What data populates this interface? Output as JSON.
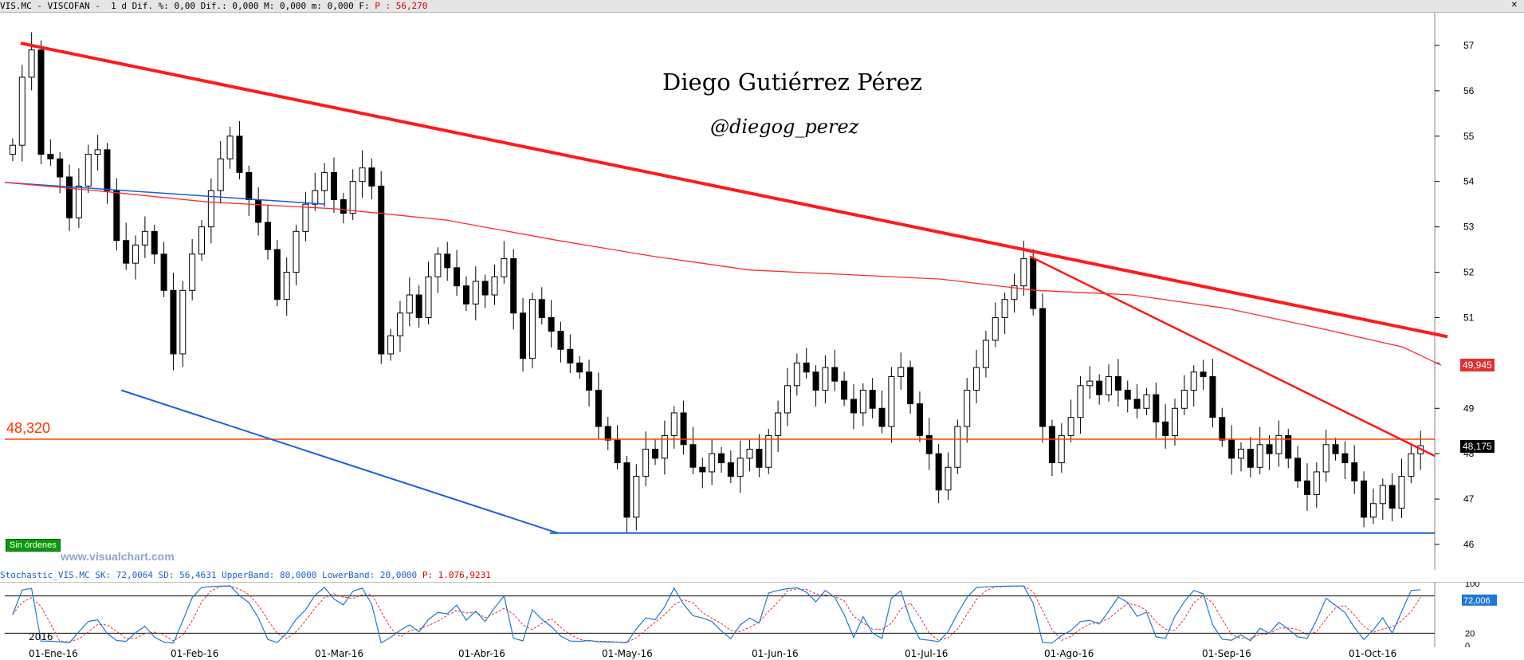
{
  "header": {
    "symbol_line": "VIS.MC - VISCOFAN -  1 d Dif. %: 0,00 Dif.: 0,000 M: 0,000 m: 0,000 F: ",
    "last_price": "P : 56,270",
    "close_icon": "close-icon"
  },
  "annotations": {
    "author": "Diego Gutiérrez Pérez",
    "handle": "@diegog_perez",
    "watermark": "www.visualchart.com",
    "orders_button": "Sin órdenes",
    "support_label": "48,320",
    "ma_tag": "49,945",
    "last_tag": "48,175",
    "year": "2016"
  },
  "colors": {
    "up_candle": "#ffffff",
    "down_candle": "#000000",
    "trend_red": "#ff1a1a",
    "ma_red": "#ff2a2a",
    "support_orange": "#ff4400",
    "channel_blue": "#1a5fd6",
    "stoch_k": "#1e78d8",
    "stoch_d": "#e03030"
  },
  "indicator": {
    "label": "Stochastic_VIS.MC SK: 72,0064 SD: 56,4631 UpperBand: 80,0000 LowerBand: 20,0000 ",
    "last_price": "P: 1.076,9231",
    "k_tag": "72,006",
    "d_tag": "56,463",
    "upper_tag": "100",
    "lower_tag": "20",
    "axis_labels": [
      "100",
      "20",
      "0"
    ]
  },
  "date_axis": [
    "01-Ene-16",
    "01-Feb-16",
    "01-Mar-16",
    "01-Abr-16",
    "01-May-16",
    "01-Jun-16",
    "01-Jul-16",
    "01-Ago-16",
    "01-Sep-16",
    "01-Oct-16"
  ],
  "chart_data": {
    "type": "candlestick",
    "title": "VIS.MC - VISCOFAN",
    "y_axis_ticks": [
      46,
      47,
      48,
      49,
      50,
      51,
      52,
      53,
      54,
      55,
      56,
      57
    ],
    "ylim": [
      45.5,
      57.5
    ],
    "x_categories": [
      "01-Ene-16",
      "01-Feb-16",
      "01-Mar-16",
      "01-Abr-16",
      "01-May-16",
      "01-Jun-16",
      "01-Jul-16",
      "01-Ago-16",
      "01-Sep-16",
      "01-Oct-16"
    ],
    "close_series_approx": [
      54.8,
      56.3,
      56.9,
      54.6,
      54.5,
      54.1,
      53.2,
      53.9,
      54.6,
      54.7,
      53.8,
      52.7,
      52.2,
      52.6,
      52.9,
      52.4,
      51.6,
      50.2,
      51.6,
      52.4,
      53.0,
      53.8,
      54.5,
      55.0,
      54.2,
      53.6,
      53.1,
      52.5,
      51.4,
      52.0,
      52.9,
      53.5,
      53.8,
      54.2,
      53.6,
      53.3,
      54.0,
      54.3,
      53.9,
      50.2,
      50.6,
      51.1,
      51.5,
      51.0,
      51.9,
      52.4,
      52.1,
      51.7,
      51.3,
      51.8,
      51.5,
      51.9,
      52.3,
      51.1,
      50.1,
      51.4,
      51.0,
      50.7,
      50.3,
      50.0,
      49.8,
      49.4,
      48.6,
      48.3,
      47.8,
      46.6,
      47.5,
      48.1,
      47.9,
      48.4,
      48.9,
      48.2,
      47.7,
      47.6,
      48.0,
      47.8,
      47.5,
      47.9,
      48.1,
      47.7,
      48.4,
      48.9,
      49.5,
      50.0,
      49.8,
      49.4,
      49.9,
      49.6,
      49.2,
      48.9,
      49.4,
      49.0,
      48.6,
      49.7,
      49.9,
      49.1,
      48.4,
      48.0,
      47.2,
      47.7,
      48.6,
      49.4,
      49.9,
      50.5,
      51.0,
      51.4,
      51.7,
      52.3,
      51.2,
      48.6,
      47.8,
      48.4,
      48.8,
      49.5,
      49.6,
      49.3,
      49.7,
      49.4,
      49.2,
      49.0,
      49.3,
      48.7,
      48.4,
      49.0,
      49.4,
      49.8,
      49.7,
      48.8,
      48.3,
      47.9,
      48.1,
      47.7,
      48.2,
      48.0,
      48.4,
      47.9,
      47.4,
      47.1,
      47.6,
      48.2,
      48.0,
      47.8,
      47.4,
      46.6,
      46.9,
      47.3,
      46.8,
      47.5,
      48.0,
      48.175
    ],
    "moving_average_last": 49.945,
    "support_level": 48.32,
    "channel_low": 46.25,
    "ma_level_label": "49,945",
    "last_label": "48,175"
  }
}
